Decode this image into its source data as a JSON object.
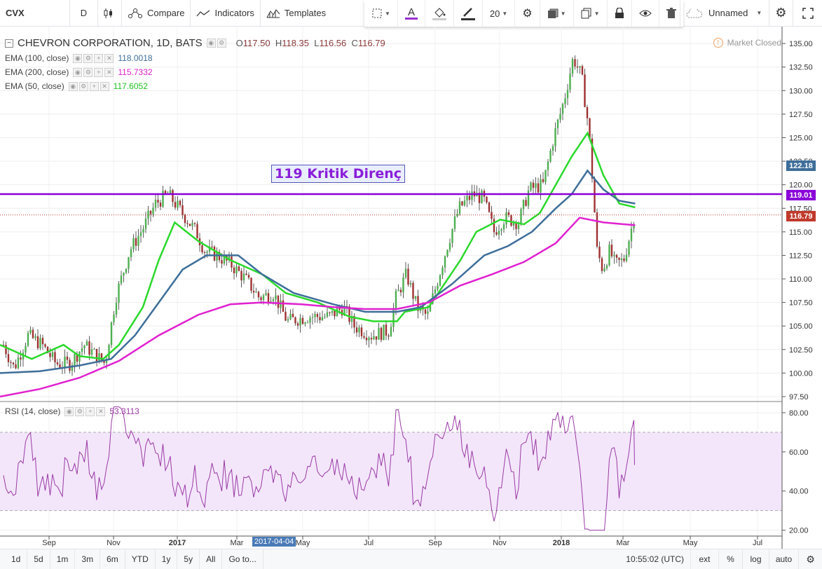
{
  "toolbar": {
    "symbol": "CVX",
    "interval": "D",
    "compare": "Compare",
    "indicators": "Indicators",
    "templates": "Templates",
    "font_size": "20",
    "layout_name": "Unnamed"
  },
  "legend": {
    "title": "CHEVRON CORPORATION, 1D, BATS",
    "o_label": "O",
    "o": "117.50",
    "h_label": "H",
    "h": "118.35",
    "l_label": "L",
    "l": "116.56",
    "c_label": "C",
    "c": "116.79",
    "ema100_label": "EMA (100, close)",
    "ema100_value": "118.0018",
    "ema200_label": "EMA (200, close)",
    "ema200_value": "115.7332",
    "ema50_label": "EMA (50, close)",
    "ema50_value": "117.6052",
    "rsi_label": "RSI (14, close)",
    "rsi_value": "53.3113"
  },
  "market_status": "Market Closed",
  "annotation": "119 Kritik Direnç",
  "price_tags": {
    "upper": "122.18",
    "resistance": "119.01",
    "last": "116.79"
  },
  "colors": {
    "up": "#4caf50",
    "down": "#a03030",
    "ema50": "#2bd92b",
    "ema100": "#3e6e9a",
    "ema200": "#e020d0",
    "resistance": "#8a00d8",
    "rsi_line": "#9a3aa5",
    "rsi_band": "#f3e6fb"
  },
  "date_badge": "2017-04-04",
  "bottom": {
    "ranges": [
      "1d",
      "5d",
      "1m",
      "3m",
      "6m",
      "YTD",
      "1y",
      "5y",
      "All"
    ],
    "goto": "Go to...",
    "time": "10:55:02 (UTC)",
    "ext": "ext",
    "pct": "%",
    "log": "log",
    "auto": "auto"
  },
  "chart_data": [
    {
      "type": "candlestick",
      "title": "CHEVRON CORPORATION, 1D, BATS",
      "x_ticks": [
        "Sep",
        "Nov",
        "2017",
        "Mar",
        "May",
        "Jul",
        "Sep",
        "Nov",
        "2018",
        "Mar",
        "May",
        "Jul"
      ],
      "y_ticks": [
        97.5,
        100.0,
        102.5,
        105.0,
        107.5,
        110.0,
        112.5,
        115.0,
        117.5,
        120.0,
        122.5,
        125.0,
        127.5,
        130.0,
        132.5,
        135.0
      ],
      "ylim": [
        97.5,
        136
      ],
      "horizontal_line": 119.01,
      "last_price": 116.79,
      "series": [
        {
          "name": "EMA (50, close)",
          "points": [
            [
              0,
              103
            ],
            [
              0.04,
              101.5
            ],
            [
              0.08,
              103
            ],
            [
              0.1,
              101.8
            ],
            [
              0.13,
              101.5
            ],
            [
              0.15,
              103
            ],
            [
              0.18,
              107
            ],
            [
              0.2,
              112
            ],
            [
              0.22,
              116
            ],
            [
              0.25,
              114
            ],
            [
              0.29,
              112
            ],
            [
              0.33,
              110.5
            ],
            [
              0.36,
              108.5
            ],
            [
              0.4,
              107.5
            ],
            [
              0.44,
              106
            ],
            [
              0.47,
              105.5
            ],
            [
              0.5,
              105.5
            ],
            [
              0.51,
              106.5
            ],
            [
              0.54,
              107
            ],
            [
              0.58,
              112
            ],
            [
              0.6,
              115
            ],
            [
              0.63,
              116.3
            ],
            [
              0.66,
              115.8
            ],
            [
              0.68,
              117
            ],
            [
              0.7,
              120
            ],
            [
              0.72,
              123
            ],
            [
              0.74,
              125.5
            ],
            [
              0.76,
              121
            ],
            [
              0.78,
              118
            ],
            [
              0.8,
              117.6
            ]
          ]
        },
        {
          "name": "EMA (100, close)",
          "points": [
            [
              0,
              100
            ],
            [
              0.05,
              100.2
            ],
            [
              0.1,
              100.8
            ],
            [
              0.14,
              101.5
            ],
            [
              0.17,
              104
            ],
            [
              0.2,
              107.5
            ],
            [
              0.23,
              111
            ],
            [
              0.26,
              112.5
            ],
            [
              0.3,
              112.5
            ],
            [
              0.33,
              110.5
            ],
            [
              0.37,
              108.5
            ],
            [
              0.42,
              107.3
            ],
            [
              0.46,
              106.5
            ],
            [
              0.5,
              106.5
            ],
            [
              0.53,
              107
            ],
            [
              0.57,
              109.5
            ],
            [
              0.61,
              112.5
            ],
            [
              0.64,
              113.5
            ],
            [
              0.67,
              115
            ],
            [
              0.7,
              117.5
            ],
            [
              0.72,
              119
            ],
            [
              0.74,
              121.5
            ],
            [
              0.76,
              119.5
            ],
            [
              0.78,
              118.3
            ],
            [
              0.8,
              118
            ]
          ]
        },
        {
          "name": "EMA (200, close)",
          "points": [
            [
              0,
              97.5
            ],
            [
              0.05,
              98.3
            ],
            [
              0.1,
              99.5
            ],
            [
              0.15,
              101.3
            ],
            [
              0.2,
              104
            ],
            [
              0.25,
              106.2
            ],
            [
              0.29,
              107.3
            ],
            [
              0.33,
              107.5
            ],
            [
              0.38,
              107.3
            ],
            [
              0.42,
              107
            ],
            [
              0.46,
              106.8
            ],
            [
              0.5,
              106.8
            ],
            [
              0.54,
              107.5
            ],
            [
              0.58,
              109.3
            ],
            [
              0.62,
              110.5
            ],
            [
              0.66,
              111.8
            ],
            [
              0.7,
              113.8
            ],
            [
              0.73,
              116.5
            ],
            [
              0.76,
              116
            ],
            [
              0.8,
              115.7
            ]
          ]
        }
      ]
    },
    {
      "type": "line",
      "title": "RSI (14, close)",
      "y_ticks": [
        20.0,
        40.0,
        60.0,
        80.0
      ],
      "ylim": [
        18,
        84
      ],
      "band": [
        30,
        70
      ],
      "last": 53.3113
    }
  ]
}
